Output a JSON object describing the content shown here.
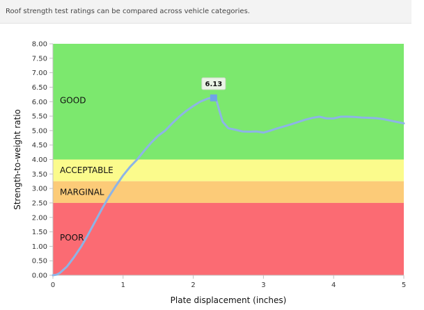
{
  "banner": {
    "text": "Roof strength test ratings can be compared across vehicle categories."
  },
  "chart_data": {
    "type": "line",
    "title": "",
    "xlabel": "Plate displacement (inches)",
    "ylabel": "Strength-to-weight ratio",
    "xlim": [
      0,
      5
    ],
    "ylim": [
      0,
      8
    ],
    "x_ticks": [
      "0",
      "1",
      "2",
      "3",
      "4",
      "5"
    ],
    "y_ticks": [
      "0.00",
      "0.50",
      "1.00",
      "1.50",
      "2.00",
      "2.50",
      "3.00",
      "3.50",
      "4.00",
      "4.50",
      "5.00",
      "5.50",
      "6.00",
      "6.50",
      "7.00",
      "7.50",
      "8.00"
    ],
    "grid": false,
    "bands": [
      {
        "label": "GOOD",
        "from": 4.0,
        "to": 8.0,
        "color": "#7ce86e"
      },
      {
        "label": "ACCEPTABLE",
        "from": 3.25,
        "to": 4.0,
        "color": "#fbfb8c"
      },
      {
        "label": "MARGINAL",
        "from": 2.5,
        "to": 3.25,
        "color": "#fccb78"
      },
      {
        "label": "POOR",
        "from": 0.0,
        "to": 2.5,
        "color": "#fb6b73"
      }
    ],
    "series": [
      {
        "color": "#8db4e6",
        "x": [
          0,
          0.05,
          0.1,
          0.2,
          0.3,
          0.4,
          0.5,
          0.6,
          0.7,
          0.8,
          0.9,
          1.0,
          1.1,
          1.2,
          1.3,
          1.4,
          1.5,
          1.6,
          1.7,
          1.8,
          1.9,
          2.0,
          2.1,
          2.2,
          2.25,
          2.29,
          2.33,
          2.37,
          2.42,
          2.5,
          2.6,
          2.7,
          2.8,
          2.9,
          3.0,
          3.1,
          3.2,
          3.3,
          3.4,
          3.5,
          3.6,
          3.7,
          3.8,
          3.9,
          4.0,
          4.1,
          4.2,
          4.3,
          4.4,
          4.5,
          4.6,
          4.7,
          4.8,
          4.9,
          5.0
        ],
        "y": [
          0.0,
          0.02,
          0.08,
          0.3,
          0.62,
          0.98,
          1.4,
          1.85,
          2.3,
          2.72,
          3.1,
          3.45,
          3.75,
          4.0,
          4.3,
          4.58,
          4.82,
          5.0,
          5.25,
          5.48,
          5.68,
          5.85,
          6.0,
          6.1,
          6.13,
          6.15,
          6.05,
          5.7,
          5.3,
          5.08,
          5.03,
          4.97,
          4.96,
          4.97,
          4.93,
          5.0,
          5.08,
          5.15,
          5.22,
          5.3,
          5.38,
          5.44,
          5.48,
          5.42,
          5.42,
          5.48,
          5.48,
          5.47,
          5.45,
          5.44,
          5.43,
          5.4,
          5.35,
          5.3,
          5.25
        ]
      }
    ],
    "annotations": [
      {
        "text": "6.13",
        "x": 2.29,
        "y": 6.13
      }
    ]
  }
}
